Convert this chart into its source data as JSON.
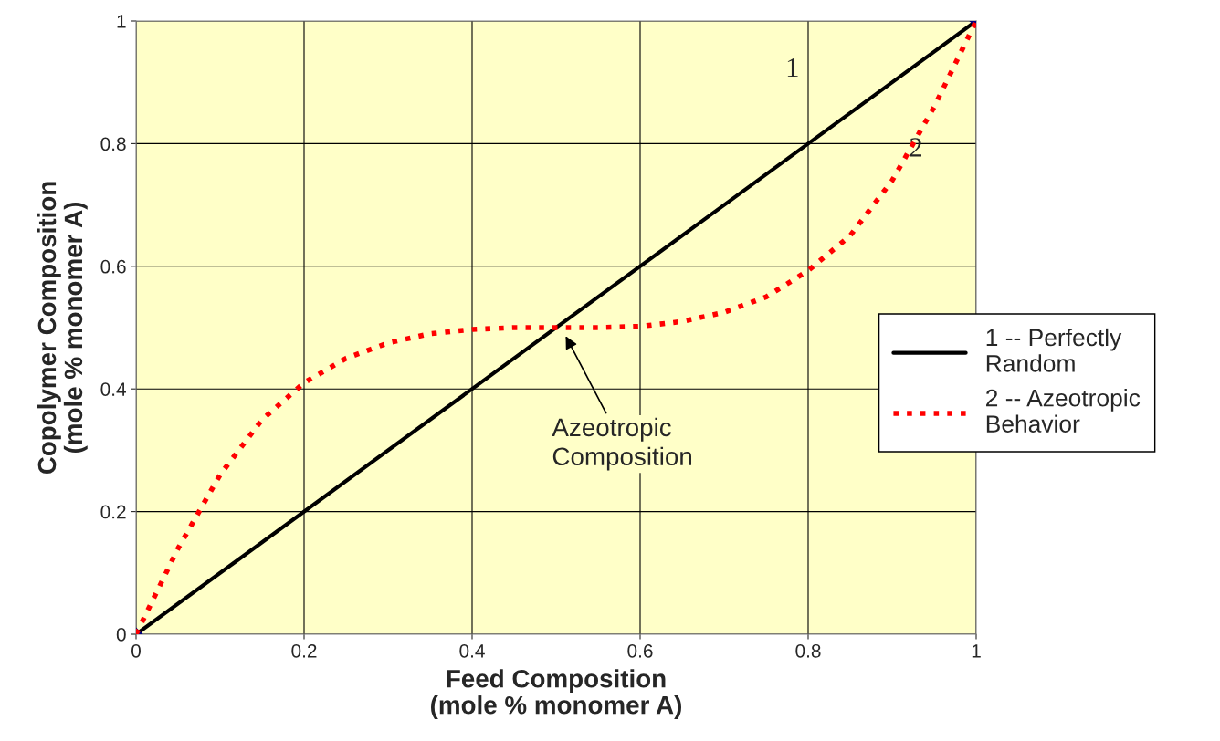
{
  "chart_data": {
    "type": "line",
    "xlabel": "Feed Composition\n(mole % monomer A)",
    "ylabel": "Copolymer Composition\n(mole % monomer A)",
    "series": [
      {
        "name": "1 -- Perfectly\nRandom",
        "color": "#000000",
        "line_style": "solid",
        "marker": "diamond",
        "x": [
          0,
          1
        ],
        "values": [
          0,
          1
        ]
      },
      {
        "name": "2 -- Azeotropic\nBehavior",
        "color": "#ff0000",
        "line_style": "dotted",
        "marker": "none",
        "x": [
          0,
          0.05,
          0.1,
          0.15,
          0.2,
          0.25,
          0.3,
          0.35,
          0.4,
          0.45,
          0.5,
          0.55,
          0.6,
          0.65,
          0.7,
          0.75,
          0.8,
          0.85,
          0.9,
          0.95,
          1
        ],
        "values": [
          0,
          0.14,
          0.26,
          0.35,
          0.41,
          0.45,
          0.475,
          0.49,
          0.497,
          0.5,
          0.5,
          0.5,
          0.502,
          0.51,
          0.525,
          0.55,
          0.593,
          0.65,
          0.74,
          0.86,
          1
        ]
      }
    ],
    "annotations": [
      "1",
      "2",
      {
        "text": "Azeotropic\nComposition",
        "x": 0.51,
        "y": 0.49
      }
    ],
    "xlim": [
      0,
      1
    ],
    "ylim": [
      0,
      1
    ],
    "xticks": [
      0,
      0.2,
      0.4,
      0.6,
      0.8,
      1
    ],
    "yticks": [
      0,
      0.2,
      0.4,
      0.6,
      0.8,
      1
    ],
    "grid": true,
    "legend": "right"
  }
}
